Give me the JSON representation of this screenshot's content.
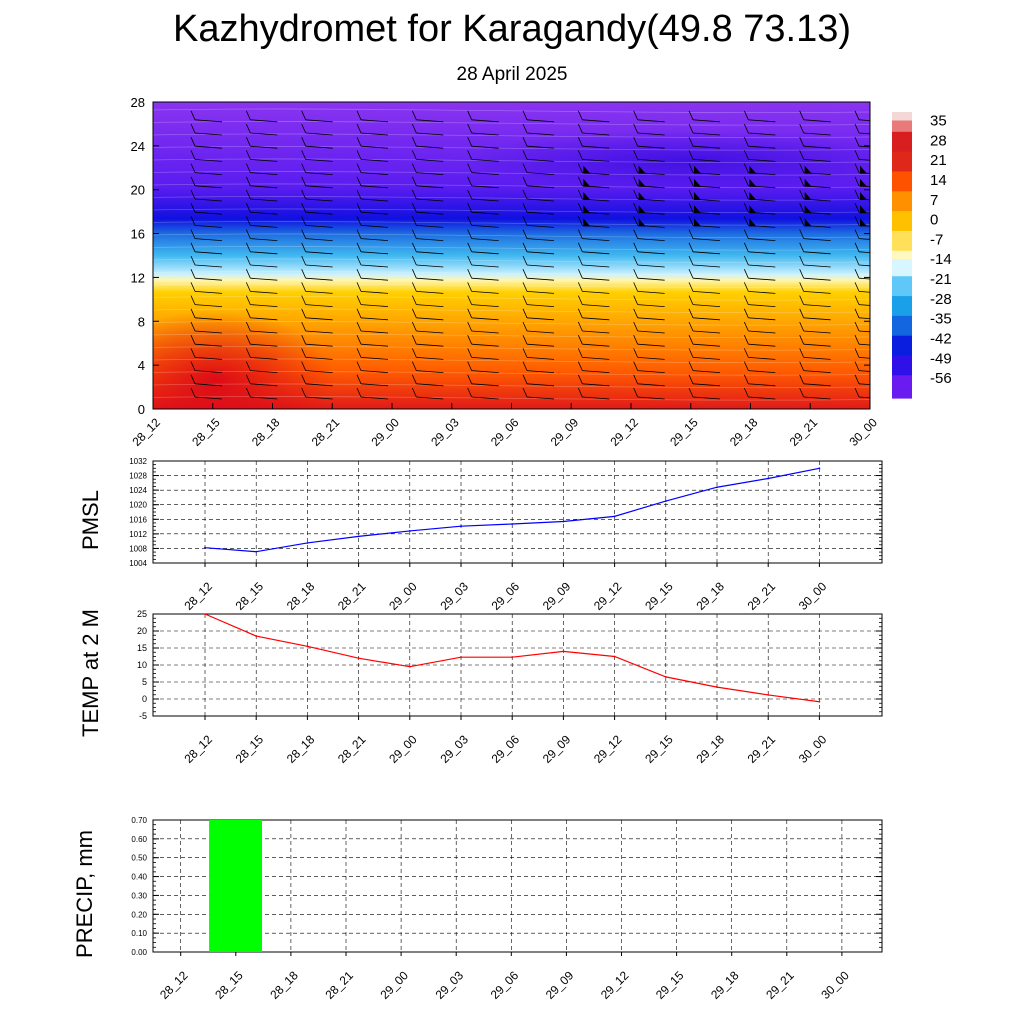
{
  "title": "Kazhydromet for Karagandy(49.8 73.13)",
  "subtitle": "28 April 2025",
  "time_labels": [
    "28_12",
    "28_15",
    "28_18",
    "28_21",
    "29_00",
    "29_03",
    "29_06",
    "29_09",
    "29_12",
    "29_15",
    "29_18",
    "29_21",
    "30_00"
  ],
  "chart_data": [
    {
      "type": "heatmap",
      "title": "",
      "ylabel": "",
      "yticks": [
        0,
        4,
        8,
        12,
        16,
        20,
        24,
        28
      ],
      "ylim": [
        0,
        28
      ],
      "colorbar": {
        "labels": [
          "35",
          "28",
          "21",
          "14",
          "7",
          "0",
          "-7",
          "-14",
          "-21",
          "-28",
          "-35",
          "-42",
          "-49",
          "-56"
        ],
        "range": [
          -63,
          38
        ],
        "colors": [
          "#f0f0f0",
          "#c8102e",
          "#e8241c",
          "#ff4a00",
          "#ff8c00",
          "#ffbe00",
          "#ffe86a",
          "#fff8c0",
          "#c0f4ff",
          "#2aa8e8",
          "#1060d8",
          "#0000e0",
          "#6a18f0",
          "#8c3cf0"
        ]
      },
      "description_rows": "temperature by level and time with wind barbs"
    },
    {
      "type": "line",
      "ylabel": "PMSL",
      "yticks": [
        1004,
        1008,
        1012,
        1016,
        1020,
        1024,
        1028,
        1032
      ],
      "ylim": [
        1004,
        1032
      ],
      "series": [
        {
          "color": "#0000ff",
          "values": [
            1008.2,
            1007.1,
            1009.5,
            1011.3,
            1012.8,
            1014.1,
            1014.7,
            1015.4,
            1016.8,
            1021.0,
            1024.8,
            1027.2,
            1030.0
          ]
        }
      ]
    },
    {
      "type": "line",
      "ylabel": "TEMP at 2 M",
      "yticks": [
        -5,
        0,
        5,
        10,
        15,
        20,
        25
      ],
      "ylim": [
        -5,
        25
      ],
      "series": [
        {
          "color": "#ff0000",
          "values": [
            25,
            18.5,
            15.5,
            12.0,
            9.5,
            12.3,
            12.3,
            14.0,
            12.5,
            6.5,
            3.5,
            1.2,
            -0.8
          ]
        }
      ]
    },
    {
      "type": "bar",
      "ylabel": "PRECIP, mm",
      "yticks": [
        "0.00",
        "0.10",
        "0.20",
        "0.30",
        "0.40",
        "0.50",
        "0.60",
        "0.70"
      ],
      "ylim": [
        0,
        0.7
      ],
      "bar_color": "#00ff00",
      "values": [
        0,
        0.7,
        0,
        0,
        0,
        0,
        0,
        0,
        0,
        0,
        0,
        0,
        0
      ]
    }
  ]
}
